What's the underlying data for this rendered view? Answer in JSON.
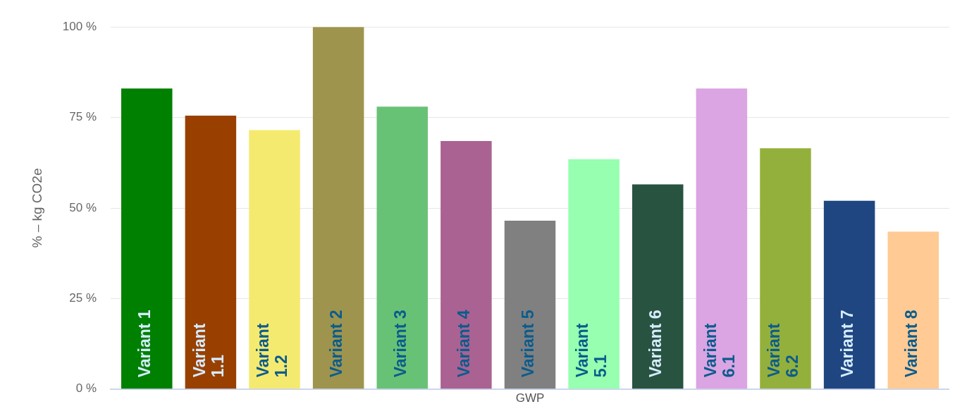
{
  "chart_data": {
    "type": "bar",
    "categories": [
      "GWP"
    ],
    "ylabel": "% – kg CO2e",
    "ylim": [
      0,
      100
    ],
    "yticks": [
      {
        "value": 0,
        "label": "0 %"
      },
      {
        "value": 25,
        "label": "25 %"
      },
      {
        "value": 50,
        "label": "50 %"
      },
      {
        "value": 75,
        "label": "75 %"
      },
      {
        "value": 100,
        "label": "100 %"
      }
    ],
    "grid": "y",
    "legend": false,
    "series": [
      {
        "name": "Variant 1",
        "color": "#008000",
        "values": [
          83
        ]
      },
      {
        "name": "Variant 1.1",
        "color": "#994000",
        "values": [
          75.5
        ]
      },
      {
        "name": "Variant 1.2",
        "color": "#f5ea70",
        "values": [
          71.5
        ]
      },
      {
        "name": "Variant 2",
        "color": "#9e944e",
        "values": [
          100
        ]
      },
      {
        "name": "Variant 3",
        "color": "#68c276",
        "values": [
          78
        ]
      },
      {
        "name": "Variant 4",
        "color": "#aa6292",
        "values": [
          68.5
        ]
      },
      {
        "name": "Variant 5",
        "color": "#808080",
        "values": [
          46.5
        ]
      },
      {
        "name": "Variant 5.1",
        "color": "#96ffb0",
        "values": [
          63.5
        ]
      },
      {
        "name": "Variant 6",
        "color": "#285340",
        "values": [
          56.5
        ]
      },
      {
        "name": "Variant 6.1",
        "color": "#dba4e3",
        "values": [
          83
        ]
      },
      {
        "name": "Variant 6.2",
        "color": "#94b03c",
        "values": [
          66.5
        ]
      },
      {
        "name": "Variant 7",
        "color": "#1f4680",
        "values": [
          52
        ]
      },
      {
        "name": "Variant 8",
        "color": "#ffca94",
        "values": [
          43.5
        ]
      }
    ]
  }
}
